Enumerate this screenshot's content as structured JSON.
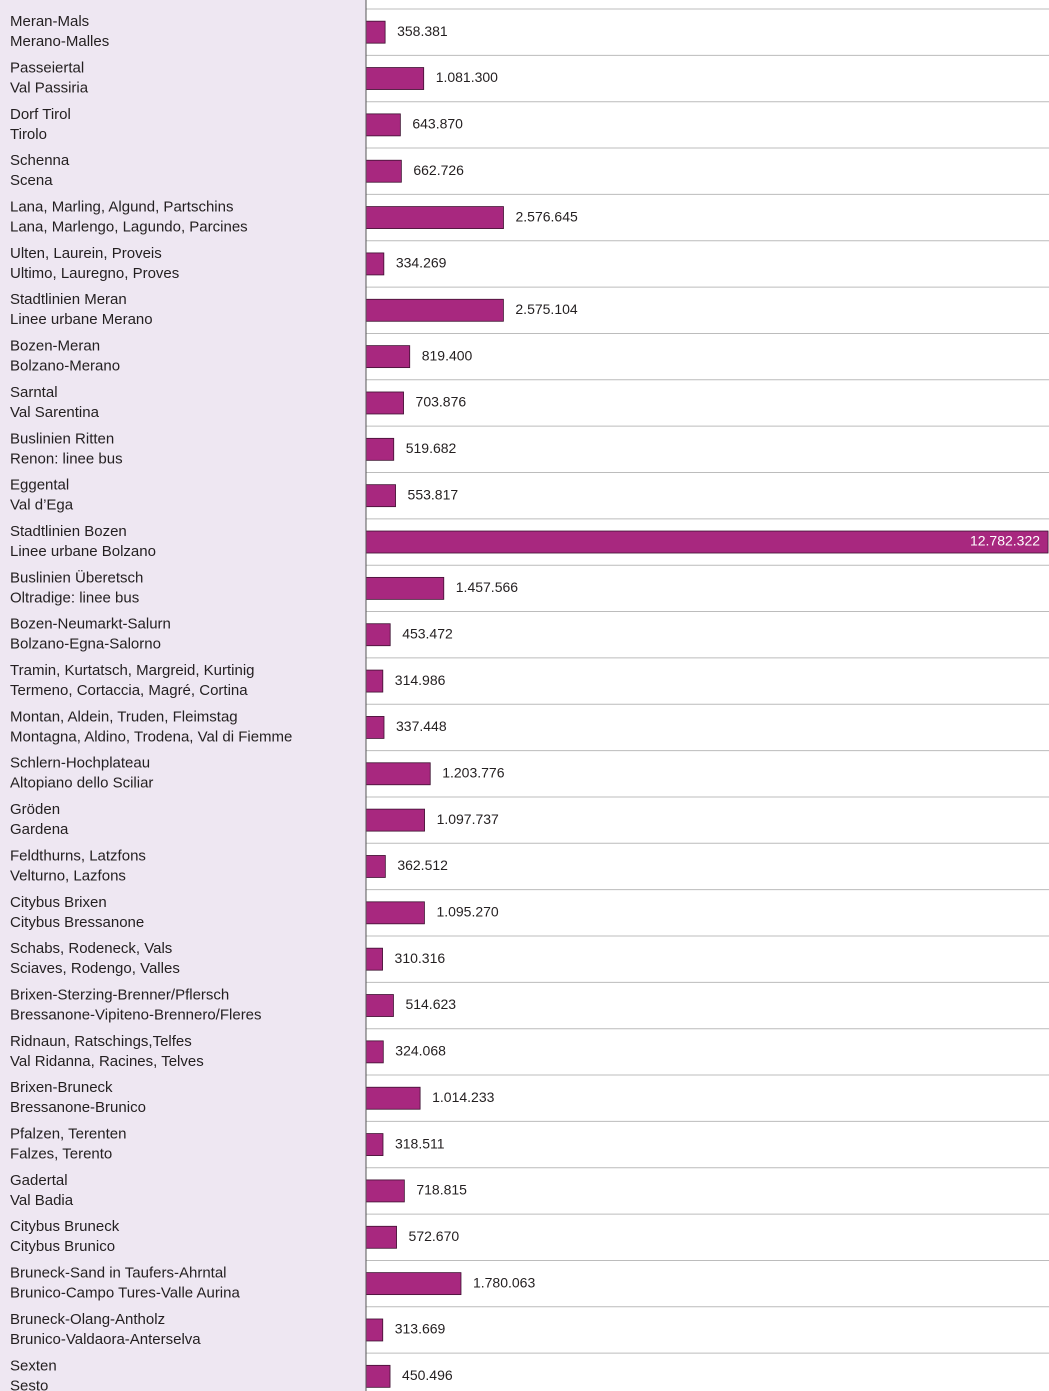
{
  "chart_data": {
    "type": "bar",
    "orientation": "horizontal",
    "color": "#a8287f",
    "categories": [
      [
        "Meran-Mals",
        "Merano-Malles"
      ],
      [
        "Passeiertal",
        "Val Passiria"
      ],
      [
        "Dorf Tirol",
        "Tirolo"
      ],
      [
        "Schenna",
        "Scena"
      ],
      [
        "Lana, Marling, Algund, Partschins",
        "Lana, Marlengo, Lagundo, Parcines"
      ],
      [
        "Ulten, Laurein, Proveis",
        "Ultimo, Lauregno, Proves"
      ],
      [
        "Stadtlinien Meran",
        "Linee urbane Merano"
      ],
      [
        "Bozen-Meran",
        "Bolzano-Merano"
      ],
      [
        "Sarntal",
        "Val Sarentina"
      ],
      [
        "Buslinien Ritten",
        "Renon: linee bus"
      ],
      [
        "Eggental",
        "Val d’Ega"
      ],
      [
        "Stadtlinien Bozen",
        "Linee urbane Bolzano"
      ],
      [
        "Buslinien Überetsch",
        "Oltradige: linee bus"
      ],
      [
        "Bozen-Neumarkt-Salurn",
        "Bolzano-Egna-Salorno"
      ],
      [
        "Tramin, Kurtatsch, Margreid, Kurtinig",
        "Termeno, Cortaccia, Magré, Cortina"
      ],
      [
        "Montan, Aldein, Truden, Fleimstag",
        "Montagna, Aldino, Trodena, Val di Fiemme"
      ],
      [
        "Schlern-Hochplateau",
        "Altopiano dello Sciliar"
      ],
      [
        "Gröden",
        "Gardena"
      ],
      [
        "Feldthurns, Latzfons",
        "Velturno, Lazfons"
      ],
      [
        "Citybus Brixen",
        "Citybus Bressanone"
      ],
      [
        "Schabs, Rodeneck, Vals",
        "Sciaves, Rodengo, Valles"
      ],
      [
        "Brixen-Sterzing-Brenner/Pflersch",
        "Bressanone-Vipiteno-Brennero/Fleres"
      ],
      [
        "Ridnaun, Ratschings,Telfes",
        "Val Ridanna, Racines, Telves"
      ],
      [
        "Brixen-Bruneck",
        "Bressanone-Brunico"
      ],
      [
        "Pfalzen, Terenten",
        "Falzes, Terento"
      ],
      [
        "Gadertal",
        "Val Badia"
      ],
      [
        "Citybus Bruneck",
        "Citybus Brunico"
      ],
      [
        "Bruneck-Sand in Taufers-Ahrntal",
        "Brunico-Campo Tures-Valle Aurina"
      ],
      [
        "Bruneck-Olang-Antholz",
        "Brunico-Valdaora-Anterselva"
      ],
      [
        "Sexten",
        "Sesto"
      ]
    ],
    "values": [
      358381,
      1081300,
      643870,
      662726,
      2576645,
      334269,
      2575104,
      819400,
      703876,
      519682,
      553817,
      12782322,
      1457566,
      453472,
      314986,
      337448,
      1203776,
      1097737,
      362512,
      1095270,
      310316,
      514623,
      324068,
      1014233,
      318511,
      718815,
      572670,
      1780063,
      313669,
      450496
    ],
    "value_labels": [
      "358.381",
      "1.081.300",
      "643.870",
      "662.726",
      "2.576.645",
      "334.269",
      "2.575.104",
      "819.400",
      "703.876",
      "519.682",
      "553.817",
      "12.782.322",
      "1.457.566",
      "453.472",
      "314.986",
      "337.448",
      "1.203.776",
      "1.097.737",
      "362.512",
      "1.095.270",
      "310.316",
      "514.623",
      "324.068",
      "1.014.233",
      "318.511",
      "718.815",
      "572.670",
      "1.780.063",
      "313.669",
      "450.496"
    ],
    "xlim": [
      0,
      12800000
    ]
  }
}
